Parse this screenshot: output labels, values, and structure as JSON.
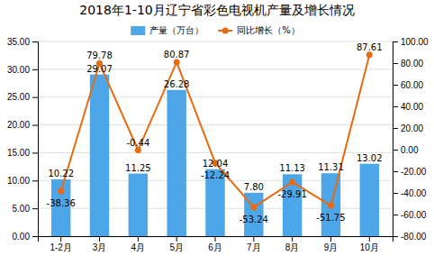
{
  "chart_data": {
    "type": "bar",
    "title": "2018年1-10月辽宁省彩色电视机产量及增长情况",
    "categories": [
      "1-2月",
      "3月",
      "4月",
      "5月",
      "6月",
      "7月",
      "8月",
      "9月",
      "10月"
    ],
    "series": [
      {
        "name": "产量（万台）",
        "type": "bar",
        "color": "#4da6e8",
        "values": [
          10.22,
          29.07,
          11.25,
          26.28,
          12.04,
          7.8,
          11.13,
          11.31,
          13.02
        ],
        "value_labels": [
          "10.22",
          "29.07",
          "11.25",
          "26.28",
          "12.04",
          "7.80",
          "11.13",
          "11.31",
          "13.02"
        ]
      },
      {
        "name": "同比增长（%）",
        "type": "line",
        "axis": "y2",
        "color": "#e86a10",
        "marker": "circle",
        "values": [
          -38.36,
          79.78,
          -0.44,
          80.87,
          -12.24,
          -53.24,
          -29.91,
          -51.75,
          87.61
        ]
      }
    ],
    "ylim": [
      0,
      35
    ],
    "yticks": [
      {
        "value": 0,
        "label": "0.00"
      },
      {
        "value": 5,
        "label": "5.00"
      },
      {
        "value": 10,
        "label": "10.00"
      },
      {
        "value": 15,
        "label": "15.00"
      },
      {
        "value": 20,
        "label": "20.00"
      },
      {
        "value": 25,
        "label": "25.00"
      },
      {
        "value": 30,
        "label": "30.00"
      },
      {
        "value": 35,
        "label": "35.00"
      }
    ],
    "y2lim": [
      -80,
      100
    ],
    "y2ticks": [
      {
        "value": -80,
        "label": "-80.00"
      },
      {
        "value": -60,
        "label": "-60.00"
      },
      {
        "value": -40,
        "label": "-40.00"
      },
      {
        "value": -20,
        "label": "-20.00"
      },
      {
        "value": 0,
        "label": "0.00"
      },
      {
        "value": 20,
        "label": "20.00"
      },
      {
        "value": 40,
        "label": "40.00"
      },
      {
        "value": 60,
        "label": "60.00"
      },
      {
        "value": 80,
        "label": "80.00"
      },
      {
        "value": 100,
        "label": "100.00"
      }
    ],
    "grid": true,
    "data_labels": true,
    "legend": "top"
  }
}
